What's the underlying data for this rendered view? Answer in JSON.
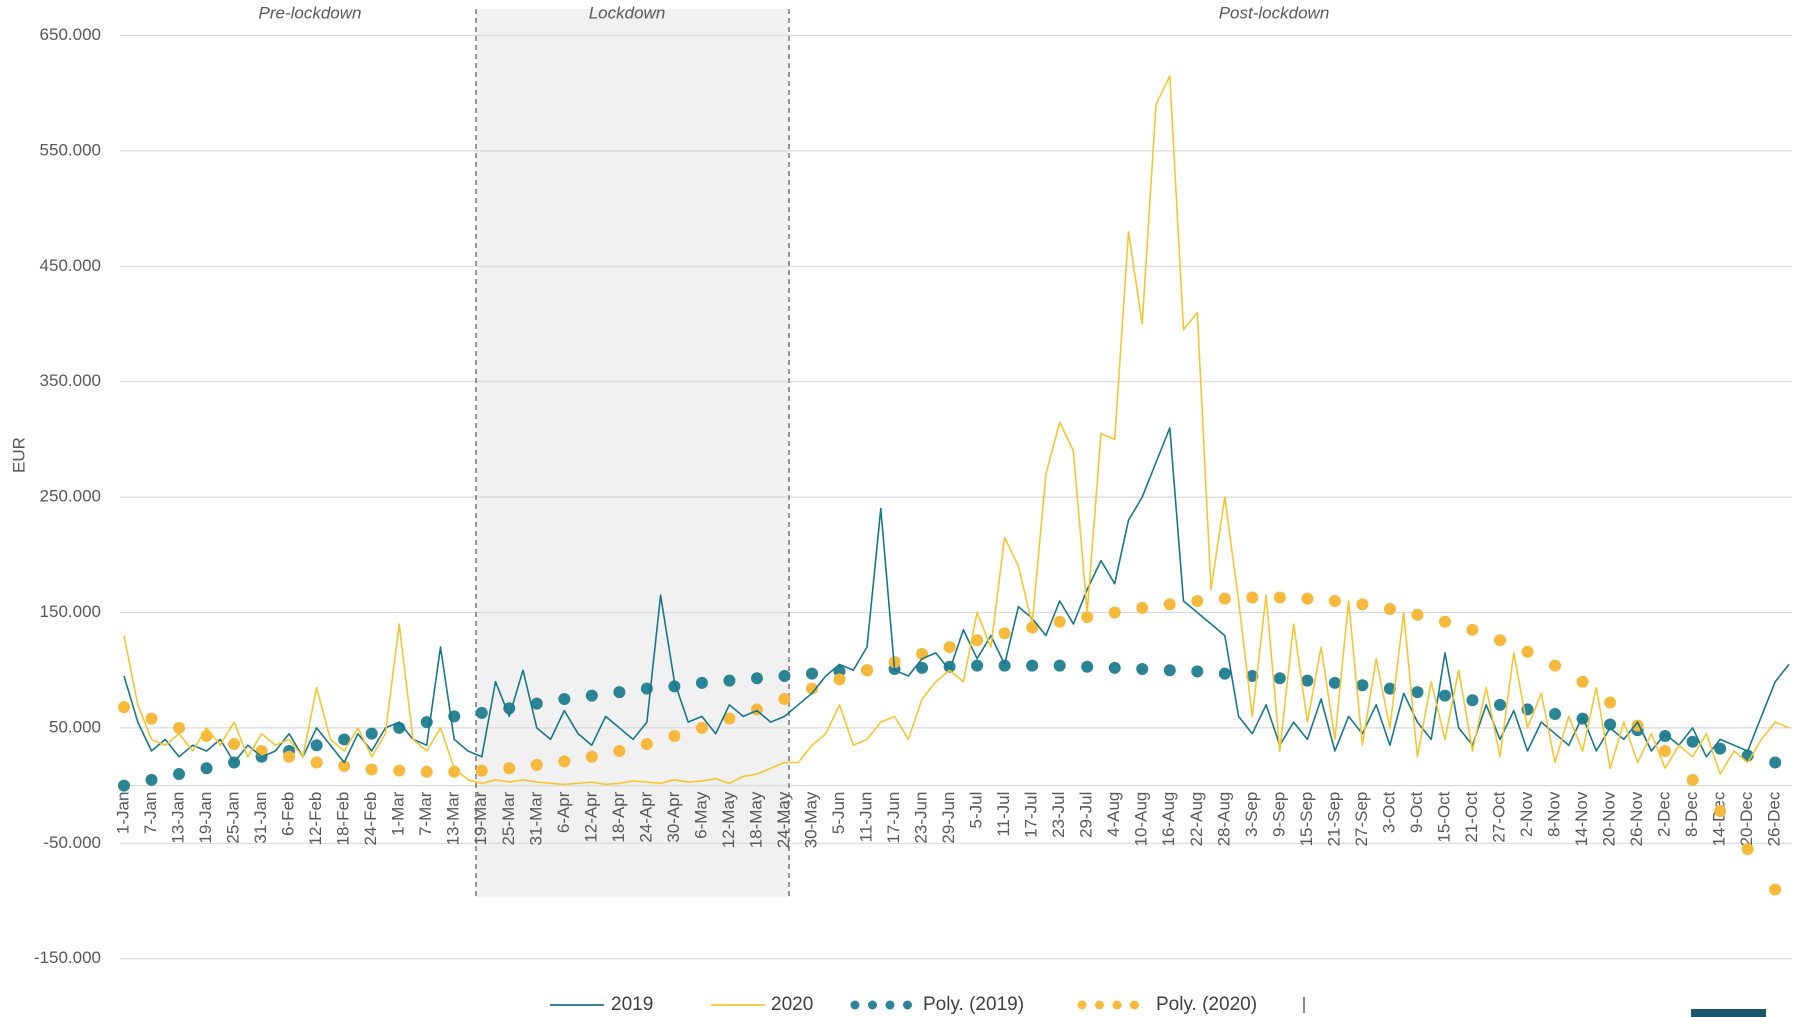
{
  "chart_data": {
    "type": "line",
    "y_label": "EUR",
    "annotations": [
      "Pre-lockdown",
      "Lockdown",
      "Post-lockdown"
    ],
    "categories": [
      "1-Jan",
      null,
      "7-Jan",
      null,
      "13-Jan",
      null,
      "19-Jan",
      null,
      "25-Jan",
      null,
      "31-Jan",
      null,
      "6-Feb",
      null,
      "12-Feb",
      null,
      "18-Feb",
      null,
      "24-Feb",
      null,
      "1-Mar",
      null,
      "7-Mar",
      null,
      "13-Mar",
      null,
      "19-Mar",
      null,
      "25-Mar",
      null,
      "31-Mar",
      null,
      "6-Apr",
      null,
      "12-Apr",
      null,
      "18-Apr",
      null,
      "24-Apr",
      null,
      "30-Apr",
      null,
      "6-May",
      null,
      "12-May",
      null,
      "18-May",
      null,
      "24-May",
      null,
      "30-May",
      null,
      "5-Jun",
      null,
      "11-Jun",
      null,
      "17-Jun",
      null,
      "23-Jun",
      null,
      "29-Jun",
      null,
      "5-Jul",
      null,
      "11-Jul",
      null,
      "17-Jul",
      null,
      "23-Jul",
      null,
      "29-Jul",
      null,
      "4-Aug",
      null,
      "10-Aug",
      null,
      "16-Aug",
      null,
      "22-Aug",
      null,
      "28-Aug",
      null,
      "3-Sep",
      null,
      "9-Sep",
      null,
      "15-Sep",
      null,
      "21-Sep",
      null,
      "27-Sep",
      null,
      "3-Oct",
      null,
      "9-Oct",
      null,
      "15-Oct",
      null,
      "21-Oct",
      null,
      "27-Oct",
      null,
      "2-Nov",
      null,
      "8-Nov",
      null,
      "14-Nov",
      null,
      "20-Nov",
      null,
      "26-Nov",
      null,
      "2-Dec",
      null,
      "8-Dec",
      null,
      "14-Dec",
      null,
      "20-Dec",
      null,
      "26-Dec",
      null
    ],
    "series": [
      {
        "name": "2019",
        "color": "#17788a",
        "marker": "line",
        "values": [
          95000,
          55000,
          30000,
          40000,
          25000,
          35000,
          30000,
          40000,
          20000,
          35000,
          25000,
          30000,
          45000,
          25000,
          50000,
          35000,
          20000,
          45000,
          30000,
          50000,
          55000,
          40000,
          35000,
          120000,
          40000,
          30000,
          25000,
          90000,
          60000,
          100000,
          50000,
          40000,
          65000,
          45000,
          35000,
          60000,
          50000,
          40000,
          55000,
          165000,
          90000,
          55000,
          60000,
          45000,
          70000,
          60000,
          65000,
          55000,
          60000,
          70000,
          80000,
          95000,
          105000,
          100000,
          120000,
          240000,
          100000,
          95000,
          110000,
          115000,
          100000,
          135000,
          110000,
          130000,
          105000,
          155000,
          145000,
          130000,
          160000,
          140000,
          170000,
          195000,
          175000,
          230000,
          250000,
          280000,
          310000,
          160000,
          150000,
          140000,
          130000,
          60000,
          45000,
          70000,
          35000,
          55000,
          40000,
          75000,
          30000,
          60000,
          45000,
          70000,
          35000,
          80000,
          55000,
          40000,
          115000,
          50000,
          35000,
          70000,
          40000,
          65000,
          30000,
          55000,
          45000,
          35000,
          60000,
          30000,
          50000,
          40000,
          55000,
          30000,
          45000,
          35000,
          50000,
          25000,
          40000,
          35000,
          30000,
          60000,
          90000,
          105000
        ]
      },
      {
        "name": "2020",
        "color": "#f7c531",
        "marker": "line",
        "values": [
          130000,
          70000,
          40000,
          35000,
          45000,
          30000,
          50000,
          35000,
          55000,
          25000,
          45000,
          35000,
          40000,
          25000,
          85000,
          40000,
          30000,
          50000,
          25000,
          45000,
          140000,
          40000,
          30000,
          50000,
          15000,
          5000,
          2000,
          5000,
          3000,
          5000,
          3000,
          2000,
          1000,
          2000,
          3000,
          1000,
          2000,
          4000,
          3000,
          2000,
          5000,
          3000,
          4000,
          6000,
          2000,
          8000,
          10000,
          15000,
          20000,
          20000,
          35000,
          45000,
          70000,
          35000,
          40000,
          55000,
          60000,
          40000,
          75000,
          90000,
          100000,
          90000,
          150000,
          120000,
          215000,
          190000,
          140000,
          270000,
          315000,
          290000,
          150000,
          305000,
          300000,
          480000,
          400000,
          590000,
          615000,
          395000,
          410000,
          170000,
          250000,
          160000,
          60000,
          165000,
          30000,
          140000,
          55000,
          120000,
          40000,
          160000,
          35000,
          110000,
          50000,
          150000,
          25000,
          90000,
          40000,
          100000,
          30000,
          85000,
          25000,
          115000,
          50000,
          80000,
          20000,
          60000,
          30000,
          85000,
          15000,
          55000,
          20000,
          45000,
          15000,
          35000,
          25000,
          45000,
          10000,
          30000,
          20000,
          40000,
          55000,
          50000
        ]
      },
      {
        "name": "Poly. (2019)",
        "color": "#2b8496",
        "marker": "dot",
        "values": [
          0,
          null,
          5000,
          null,
          10000,
          null,
          15000,
          null,
          20000,
          null,
          25000,
          null,
          30000,
          null,
          35000,
          null,
          40000,
          null,
          45000,
          null,
          50000,
          null,
          55000,
          null,
          60000,
          null,
          63000,
          null,
          67000,
          null,
          71000,
          null,
          75000,
          null,
          78000,
          null,
          81000,
          null,
          84000,
          null,
          86000,
          null,
          89000,
          null,
          91000,
          null,
          93000,
          null,
          95000,
          null,
          97000,
          null,
          99000,
          null,
          100000,
          null,
          101000,
          null,
          102000,
          null,
          103000,
          null,
          104000,
          null,
          104000,
          null,
          104000,
          null,
          104000,
          null,
          103000,
          null,
          102000,
          null,
          101000,
          null,
          100000,
          null,
          99000,
          null,
          97000,
          null,
          95000,
          null,
          93000,
          null,
          91000,
          null,
          89000,
          null,
          87000,
          null,
          84000,
          null,
          81000,
          null,
          78000,
          null,
          74000,
          null,
          70000,
          null,
          66000,
          null,
          62000,
          null,
          58000,
          null,
          53000,
          null,
          48000,
          null,
          43000,
          null,
          38000,
          null,
          32000,
          null,
          26000,
          null,
          20000,
          null
        ]
      },
      {
        "name": "Poly. (2020)",
        "color": "#f7b93c",
        "marker": "dot",
        "values": [
          68000,
          null,
          58000,
          null,
          50000,
          null,
          43000,
          null,
          36000,
          null,
          30000,
          null,
          25000,
          null,
          20000,
          null,
          17000,
          null,
          14000,
          null,
          13000,
          null,
          12000,
          null,
          12000,
          null,
          13000,
          null,
          15000,
          null,
          18000,
          null,
          21000,
          null,
          25000,
          null,
          30000,
          null,
          36000,
          null,
          43000,
          null,
          50000,
          null,
          58000,
          null,
          66000,
          null,
          75000,
          null,
          84000,
          null,
          92000,
          null,
          100000,
          null,
          107000,
          null,
          114000,
          null,
          120000,
          null,
          126000,
          null,
          132000,
          null,
          137000,
          null,
          142000,
          null,
          146000,
          null,
          150000,
          null,
          154000,
          null,
          157000,
          null,
          160000,
          null,
          162000,
          null,
          163000,
          null,
          163000,
          null,
          162000,
          null,
          160000,
          null,
          157000,
          null,
          153000,
          null,
          148000,
          null,
          142000,
          null,
          135000,
          null,
          126000,
          null,
          116000,
          null,
          104000,
          null,
          90000,
          null,
          72000,
          null,
          52000,
          null,
          30000,
          null,
          5000,
          null,
          -22000,
          null,
          -55000,
          null,
          -90000,
          null
        ]
      }
    ],
    "ylim": [
      -150000,
      650000
    ],
    "yticks": [
      {
        "value": -150000,
        "label": "-150.000"
      },
      {
        "value": -50000,
        "label": "-50.000"
      },
      {
        "value": 50000,
        "label": "50.000"
      },
      {
        "value": 150000,
        "label": "150.000"
      },
      {
        "value": 250000,
        "label": "250.000"
      },
      {
        "value": 350000,
        "label": "350.000"
      },
      {
        "value": 450000,
        "label": "450.000"
      },
      {
        "value": 550000,
        "label": "550.000"
      },
      {
        "value": 650000,
        "label": "650.000"
      }
    ],
    "grid": true,
    "legend": "bottom"
  }
}
